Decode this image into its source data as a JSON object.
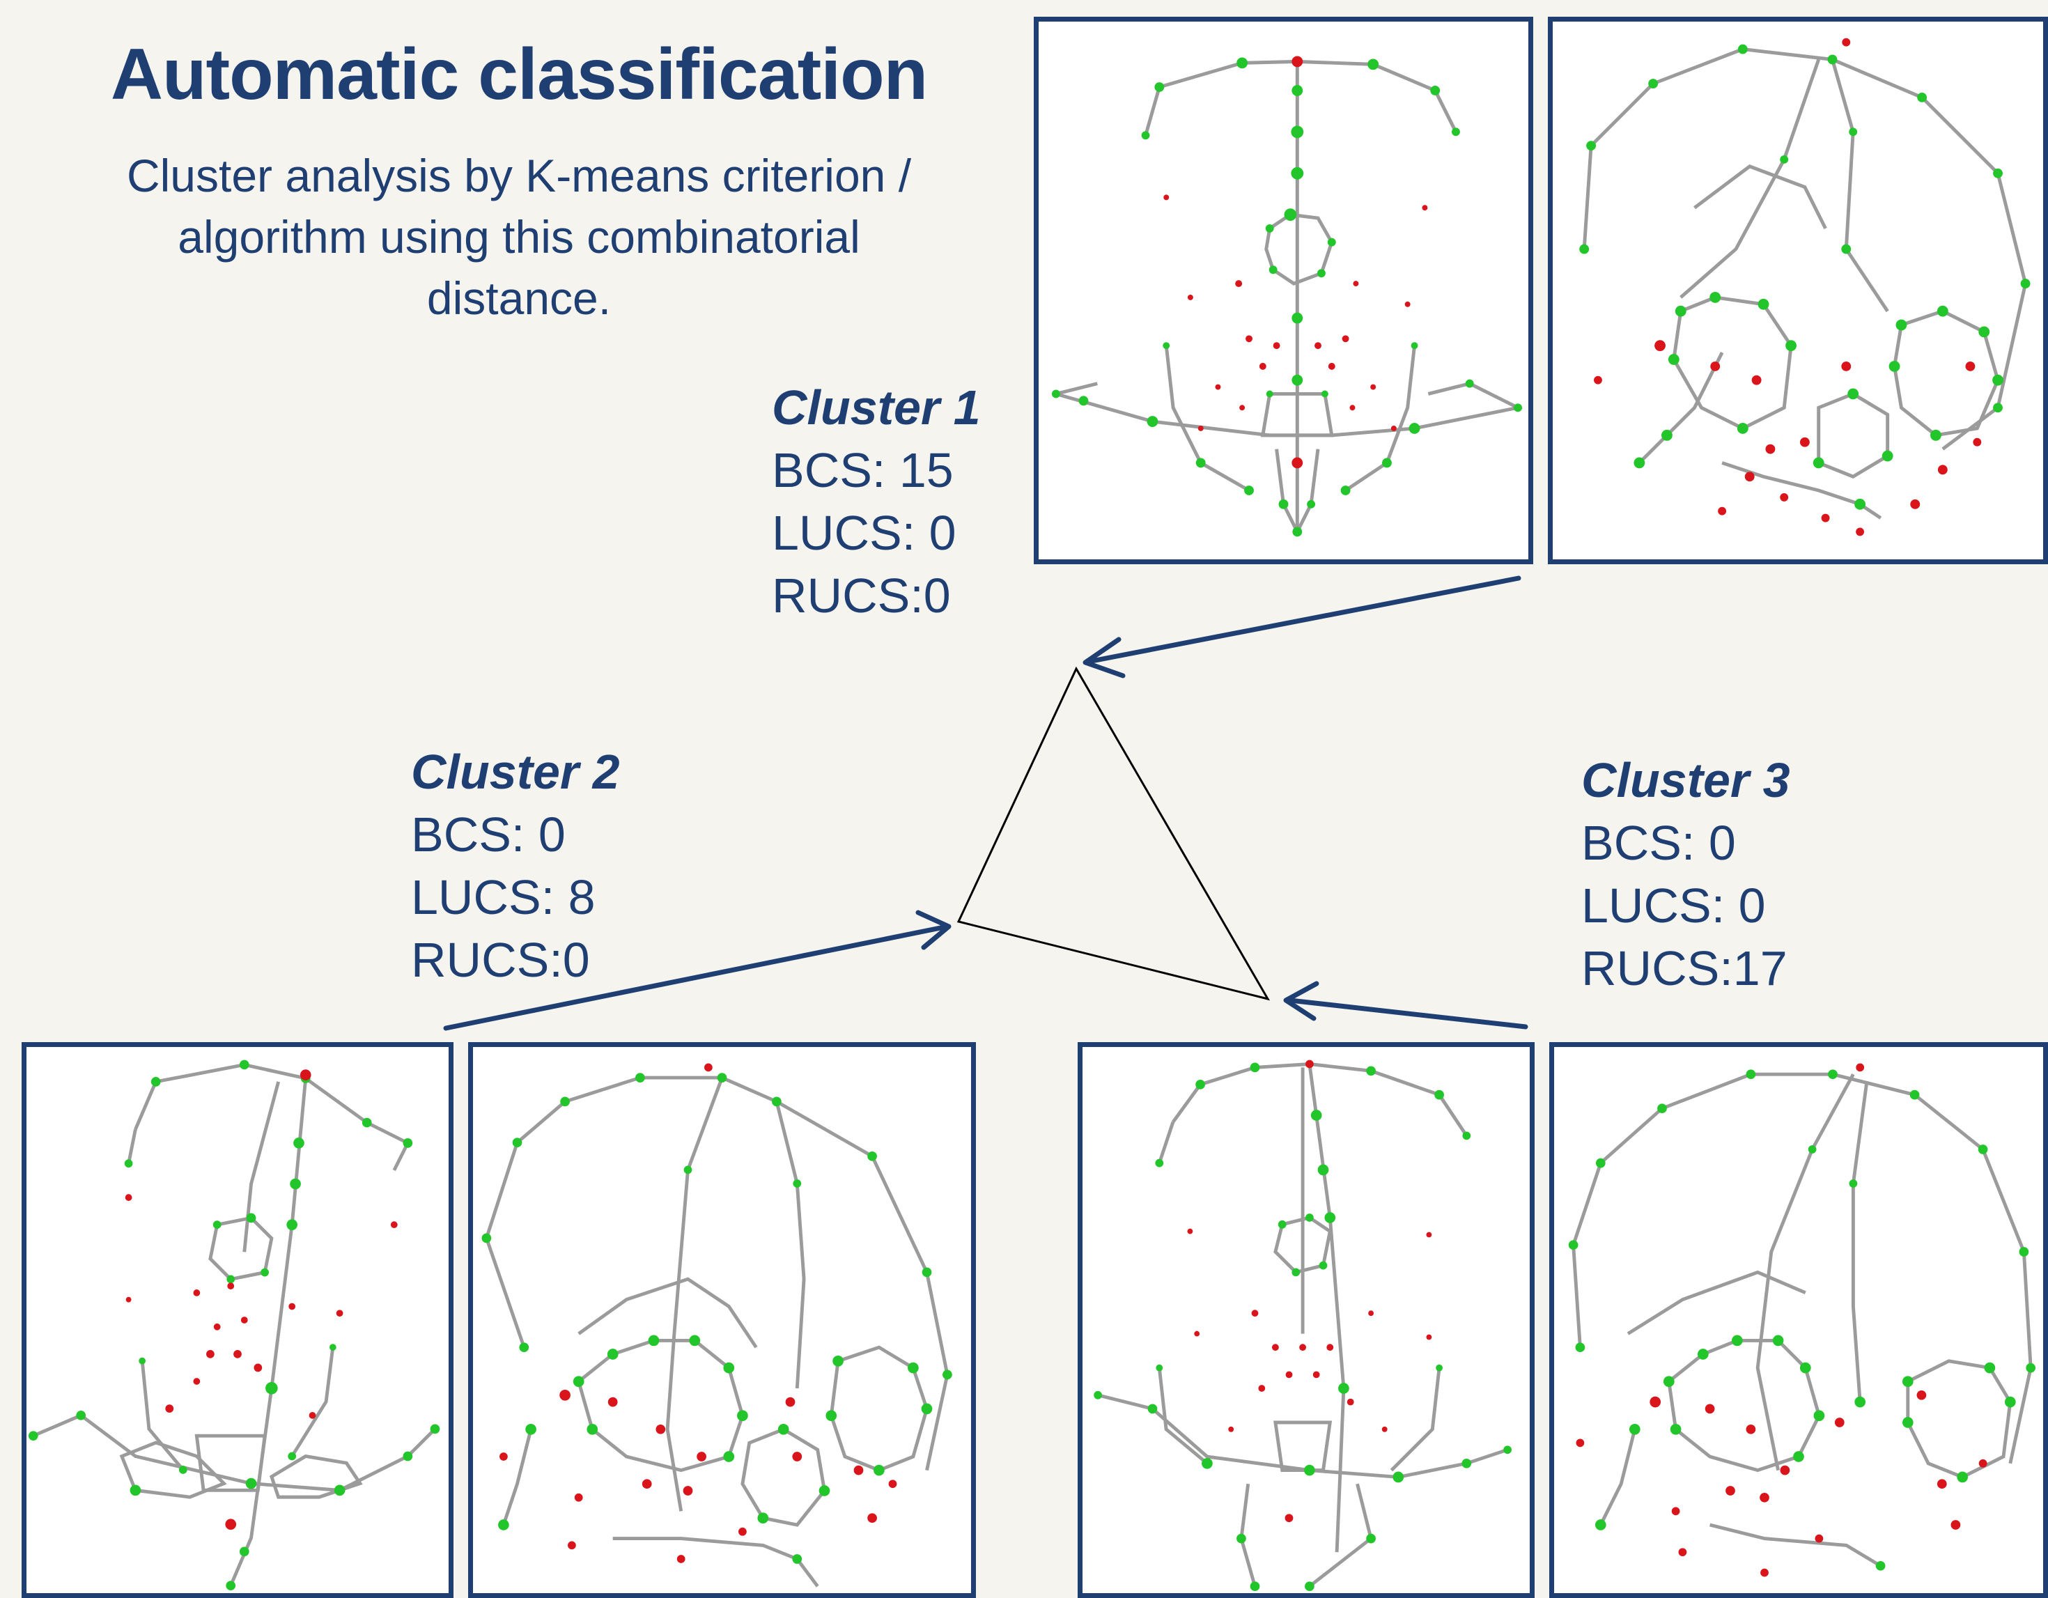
{
  "title": "Automatic classification",
  "subtitle_lines": [
    "Cluster analysis by K-means criterion /",
    "algorithm using this combinatorial",
    "distance."
  ],
  "clusters": [
    {
      "name": "Cluster 1",
      "bcs": "BCS: 15",
      "lucs": "LUCS: 0",
      "rucs": "RUCS:0"
    },
    {
      "name": "Cluster 2",
      "bcs": "BCS: 0",
      "lucs": "LUCS: 8",
      "rucs": "RUCS:0"
    },
    {
      "name": "Cluster 3",
      "bcs": "BCS: 0",
      "lucs": "LUCS: 0",
      "rucs": "RUCS:17"
    }
  ],
  "colors": {
    "text": "#1f3f73",
    "panel_border": "#1f3f73",
    "arrow": "#1f3f73",
    "triangle": "#000000",
    "landmark_green": "#22c62a",
    "landmark_red": "#d9141a",
    "wireframe": "#9b9b9b",
    "background": "#f5f4ef"
  },
  "panels": [
    {
      "cluster": "Cluster 1",
      "view": "frontal"
    },
    {
      "cluster": "Cluster 1",
      "view": "lateral"
    },
    {
      "cluster": "Cluster 2",
      "view": "frontal"
    },
    {
      "cluster": "Cluster 2",
      "view": "lateral"
    },
    {
      "cluster": "Cluster 3",
      "view": "frontal"
    },
    {
      "cluster": "Cluster 3",
      "view": "lateral"
    }
  ]
}
